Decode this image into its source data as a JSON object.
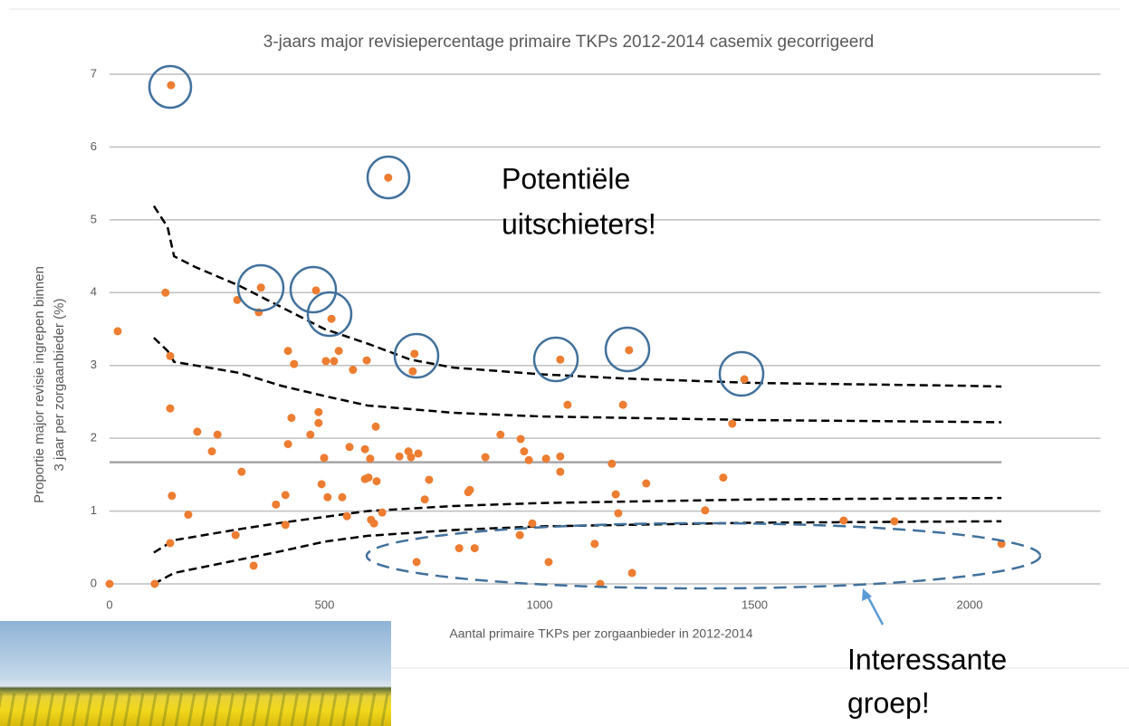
{
  "chart_data": {
    "type": "scatter",
    "title": "3-jaars major revisiepercentage primaire TKPs 2012-2014 casemix gecorrigeerd",
    "x_label": "Aantal primaire TKPs per zorgaanbieder in 2012-2014",
    "y_label": [
      "Proportie major revisie ingrepen binnen",
      "3 jaar per zorgaanbieder (%)"
    ],
    "xlim": [
      0,
      2300
    ],
    "ylim": [
      0,
      7
    ],
    "xticks": [
      0,
      500,
      1000,
      1500,
      2000
    ],
    "yticks": [
      0,
      1,
      2,
      3,
      4,
      5,
      6,
      7
    ],
    "grid": true,
    "color": "#ed7d31",
    "x": [
      0,
      19,
      143,
      130,
      141,
      141,
      145,
      141,
      105,
      183,
      204,
      238,
      251,
      307,
      293,
      297,
      352,
      347,
      335,
      387,
      409,
      415,
      415,
      423,
      429,
      409,
      467,
      480,
      486,
      486,
      493,
      499,
      503,
      507,
      516,
      522,
      533,
      541,
      552,
      558,
      566,
      594,
      594,
      602,
      598,
      606,
      608,
      615,
      619,
      621,
      634,
      648,
      674,
      695,
      705,
      709,
      714,
      701,
      718,
      733,
      743,
      813,
      834,
      838,
      849,
      874,
      909,
      956,
      954,
      964,
      975,
      983,
      1015,
      1021,
      1048,
      1048,
      1048,
      1065,
      1128,
      1141,
      1168,
      1177,
      1183,
      1194,
      1208,
      1215,
      1248,
      1385,
      1427,
      1448,
      1476,
      1707,
      1825,
      2074
    ],
    "values": [
      0,
      3.47,
      6.85,
      4.0,
      3.13,
      2.41,
      1.21,
      0.56,
      0,
      0.95,
      2.09,
      1.82,
      2.05,
      1.54,
      0.67,
      3.9,
      4.07,
      3.73,
      0.25,
      1.09,
      1.22,
      3.2,
      1.92,
      2.28,
      3.02,
      0.81,
      2.05,
      4.03,
      2.36,
      2.21,
      1.37,
      1.73,
      3.06,
      1.19,
      3.64,
      3.06,
      3.2,
      1.19,
      0.93,
      1.88,
      2.94,
      1.85,
      1.44,
      1.46,
      3.07,
      1.72,
      0.88,
      0.83,
      2.16,
      1.41,
      0.98,
      5.58,
      1.75,
      1.82,
      2.92,
      3.16,
      0.3,
      1.74,
      1.79,
      1.16,
      1.43,
      0.49,
      1.26,
      1.29,
      0.49,
      1.74,
      2.05,
      1.99,
      0.67,
      1.82,
      1.7,
      0.83,
      1.72,
      0.3,
      3.08,
      1.75,
      1.54,
      2.46,
      0.55,
      0,
      1.65,
      1.23,
      0.97,
      2.46,
      3.21,
      0.15,
      1.38,
      1.01,
      1.46,
      2.2,
      2.81,
      0.87,
      0.86,
      0.55
    ],
    "mean_line": {
      "value": 1.67,
      "color": "#a6a6a6"
    },
    "limit_lines": [
      {
        "x": [
          103,
          135,
          150,
          200,
          300,
          400,
          500,
          600,
          700,
          800,
          1000,
          1200,
          1500,
          2000,
          2074
        ],
        "values": [
          5.19,
          4.9,
          4.5,
          4.35,
          4.1,
          3.8,
          3.5,
          3.3,
          3.08,
          2.97,
          2.88,
          2.82,
          2.76,
          2.72,
          2.71
        ]
      },
      {
        "x": [
          103,
          135,
          150,
          300,
          400,
          500,
          600,
          800,
          1000,
          1500,
          2074
        ],
        "values": [
          3.38,
          3.2,
          3.05,
          2.9,
          2.72,
          2.58,
          2.45,
          2.35,
          2.3,
          2.25,
          2.22
        ]
      },
      {
        "x": [
          103,
          150,
          300,
          400,
          500,
          600,
          800,
          1000,
          1500,
          2074
        ],
        "values": [
          0.43,
          0.6,
          0.75,
          0.84,
          0.92,
          1.0,
          1.07,
          1.11,
          1.16,
          1.18
        ]
      },
      {
        "x": [
          103,
          150,
          300,
          400,
          500,
          600,
          800,
          1000,
          1500,
          2074
        ],
        "values": [
          0.0,
          0.15,
          0.33,
          0.45,
          0.58,
          0.66,
          0.74,
          0.79,
          0.84,
          0.86
        ]
      }
    ],
    "annotations": [
      {
        "lines": [
          "Potentiële",
          "uitschieters!"
        ]
      },
      {
        "lines": [
          "Interessante",
          "groep!"
        ]
      }
    ]
  }
}
